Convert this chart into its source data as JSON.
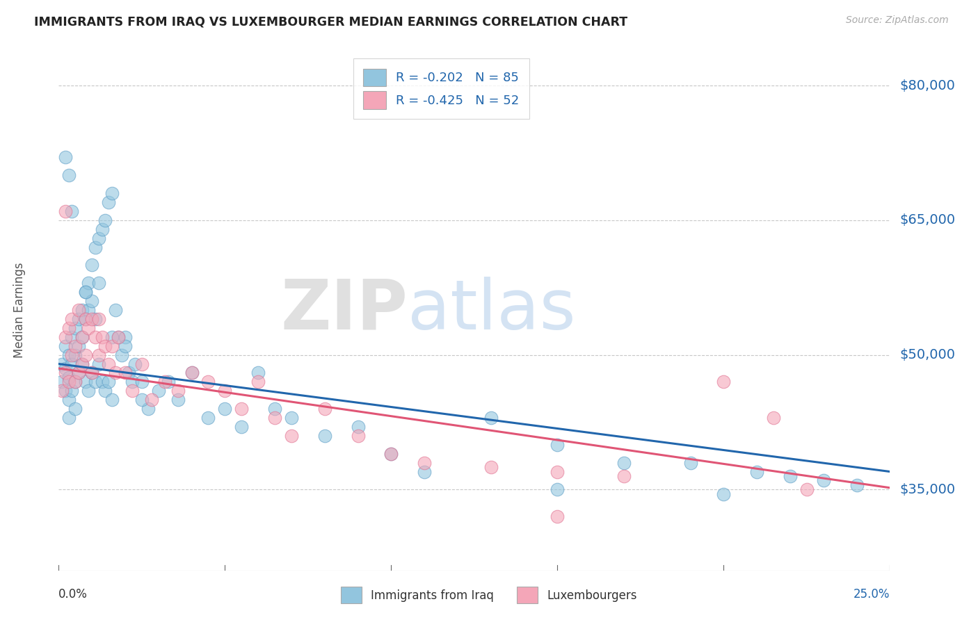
{
  "title": "IMMIGRANTS FROM IRAQ VS LUXEMBOURGER MEDIAN EARNINGS CORRELATION CHART",
  "source": "Source: ZipAtlas.com",
  "ylabel": "Median Earnings",
  "yticks": [
    35000,
    50000,
    65000,
    80000
  ],
  "ytick_labels": [
    "$35,000",
    "$50,000",
    "$65,000",
    "$80,000"
  ],
  "xmin": 0.0,
  "xmax": 0.25,
  "ymin": 26000,
  "ymax": 84000,
  "blue_color": "#92c5de",
  "pink_color": "#f4a6b8",
  "blue_edge_color": "#5a9cc5",
  "pink_edge_color": "#e07090",
  "blue_line_color": "#2166ac",
  "pink_line_color": "#e05575",
  "blue_R": -0.202,
  "blue_N": 85,
  "pink_R": -0.425,
  "pink_N": 52,
  "legend_label_blue": "Immigrants from Iraq",
  "legend_label_pink": "Luxembourgers",
  "watermark_zip": "ZIP",
  "watermark_atlas": "atlas",
  "blue_line_y0": 49000,
  "blue_line_y1": 37000,
  "pink_line_y0": 48500,
  "pink_line_y1": 35200,
  "xtick_positions": [
    0.0,
    0.05,
    0.1,
    0.15,
    0.2,
    0.25
  ],
  "blue_scatter_x": [
    0.001,
    0.001,
    0.002,
    0.002,
    0.002,
    0.003,
    0.003,
    0.003,
    0.003,
    0.004,
    0.004,
    0.004,
    0.005,
    0.005,
    0.005,
    0.005,
    0.006,
    0.006,
    0.006,
    0.007,
    0.007,
    0.007,
    0.008,
    0.008,
    0.008,
    0.009,
    0.009,
    0.009,
    0.01,
    0.01,
    0.01,
    0.011,
    0.011,
    0.011,
    0.012,
    0.012,
    0.013,
    0.013,
    0.014,
    0.014,
    0.015,
    0.015,
    0.016,
    0.016,
    0.017,
    0.018,
    0.019,
    0.02,
    0.021,
    0.022,
    0.023,
    0.025,
    0.027,
    0.03,
    0.033,
    0.036,
    0.04,
    0.045,
    0.05,
    0.055,
    0.06,
    0.065,
    0.07,
    0.08,
    0.09,
    0.1,
    0.11,
    0.13,
    0.15,
    0.17,
    0.19,
    0.21,
    0.22,
    0.23,
    0.24,
    0.002,
    0.003,
    0.004,
    0.008,
    0.012,
    0.016,
    0.02,
    0.025,
    0.15,
    0.2
  ],
  "blue_scatter_y": [
    49000,
    47000,
    48500,
    46000,
    51000,
    50000,
    47500,
    45000,
    43000,
    52000,
    49000,
    46000,
    53000,
    50000,
    47000,
    44000,
    54000,
    51000,
    48000,
    55000,
    52000,
    49000,
    57000,
    54000,
    47000,
    58000,
    55000,
    46000,
    60000,
    56000,
    48000,
    62000,
    54000,
    47000,
    63000,
    49000,
    64000,
    47000,
    65000,
    46000,
    67000,
    47000,
    68000,
    45000,
    55000,
    52000,
    50000,
    52000,
    48000,
    47000,
    49000,
    47000,
    44000,
    46000,
    47000,
    45000,
    48000,
    43000,
    44000,
    42000,
    48000,
    44000,
    43000,
    41000,
    42000,
    39000,
    37000,
    43000,
    40000,
    38000,
    38000,
    37000,
    36500,
    36000,
    35500,
    72000,
    70000,
    66000,
    57000,
    58000,
    52000,
    51000,
    45000,
    35000,
    34500
  ],
  "pink_scatter_x": [
    0.001,
    0.002,
    0.002,
    0.003,
    0.003,
    0.004,
    0.004,
    0.005,
    0.005,
    0.006,
    0.006,
    0.007,
    0.007,
    0.008,
    0.008,
    0.009,
    0.01,
    0.01,
    0.011,
    0.012,
    0.012,
    0.013,
    0.014,
    0.015,
    0.016,
    0.017,
    0.018,
    0.02,
    0.022,
    0.025,
    0.028,
    0.032,
    0.036,
    0.04,
    0.045,
    0.05,
    0.055,
    0.06,
    0.065,
    0.07,
    0.08,
    0.09,
    0.1,
    0.11,
    0.13,
    0.15,
    0.17,
    0.2,
    0.215,
    0.225,
    0.002,
    0.15
  ],
  "pink_scatter_y": [
    46000,
    52000,
    48000,
    53000,
    47000,
    54000,
    50000,
    51000,
    47000,
    55000,
    48000,
    52000,
    49000,
    54000,
    50000,
    53000,
    54000,
    48000,
    52000,
    54000,
    50000,
    52000,
    51000,
    49000,
    51000,
    48000,
    52000,
    48000,
    46000,
    49000,
    45000,
    47000,
    46000,
    48000,
    47000,
    46000,
    44000,
    47000,
    43000,
    41000,
    44000,
    41000,
    39000,
    38000,
    37500,
    37000,
    36500,
    47000,
    43000,
    35000,
    66000,
    32000
  ]
}
